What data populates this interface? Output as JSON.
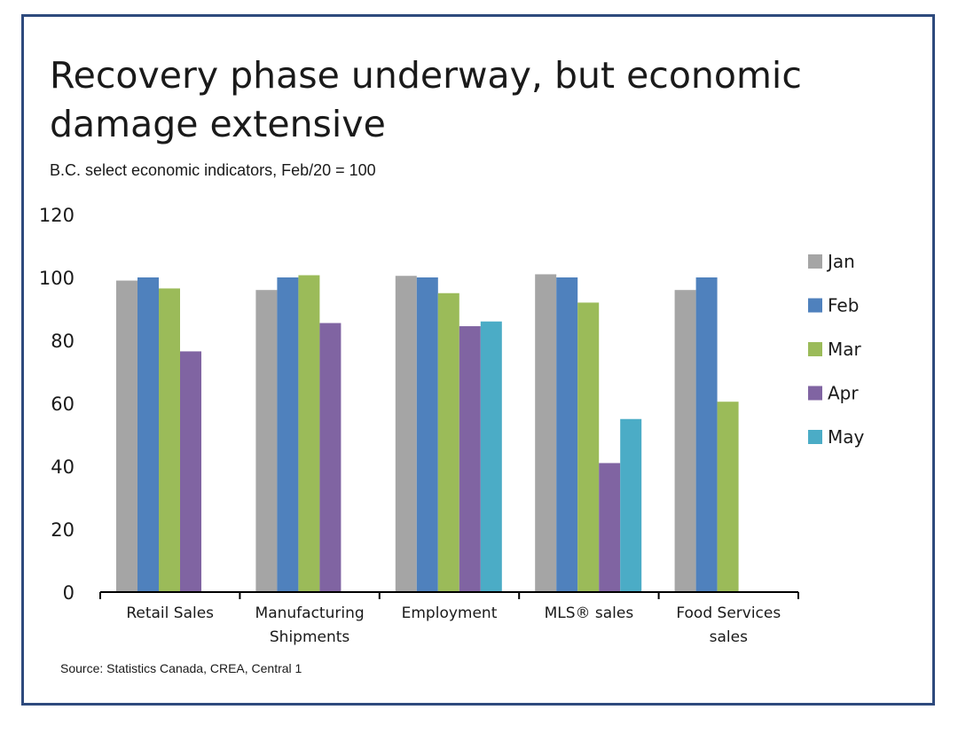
{
  "page": {
    "title": "Recovery phase underway, but economic damage extensive",
    "subtitle": "B.C. select economic indicators, Feb/20 = 100",
    "source": "Source: Statistics Canada, CREA, Central 1"
  },
  "chart_data": {
    "type": "bar",
    "title": "Recovery phase underway, but economic damage extensive",
    "subtitle": "B.C. select economic indicators, Feb/20 = 100",
    "xlabel": "",
    "ylabel": "",
    "ylim": [
      0,
      120
    ],
    "yticks": [
      0,
      20,
      40,
      60,
      80,
      100,
      120
    ],
    "grid": false,
    "legend_position": "right",
    "categories": [
      [
        "Retail Sales"
      ],
      [
        "Manufacturing",
        "Shipments"
      ],
      [
        "Employment"
      ],
      [
        "MLS® sales"
      ],
      [
        "Food Services",
        "sales"
      ]
    ],
    "series": [
      {
        "name": "Jan",
        "color": "#a5a5a5",
        "values": [
          99,
          96,
          100.5,
          101,
          96
        ]
      },
      {
        "name": "Feb",
        "color": "#4f81bd",
        "values": [
          100,
          100,
          100,
          100,
          100
        ]
      },
      {
        "name": "Mar",
        "color": "#9bbb59",
        "values": [
          96.5,
          100.7,
          95,
          92,
          60.5
        ]
      },
      {
        "name": "Apr",
        "color": "#8064a2",
        "values": [
          76.5,
          85.5,
          84.5,
          41,
          null
        ]
      },
      {
        "name": "May",
        "color": "#4bacc6",
        "values": [
          null,
          null,
          86,
          55,
          null
        ]
      }
    ]
  }
}
